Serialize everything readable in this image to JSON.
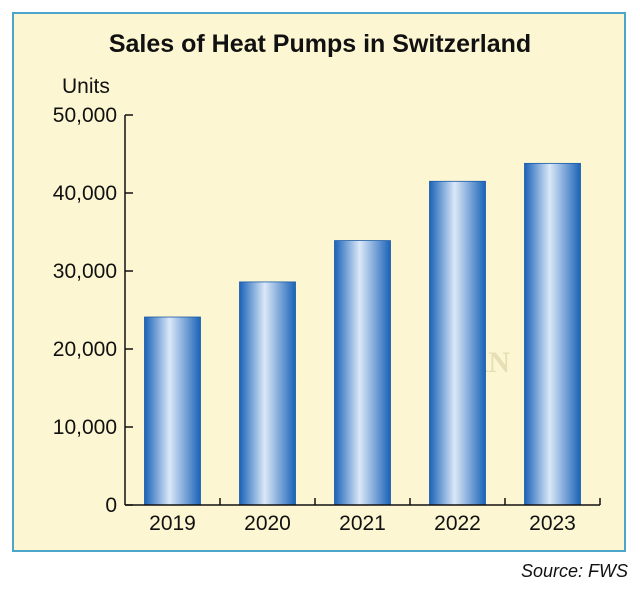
{
  "chart_data": {
    "type": "bar",
    "title": "Sales of Heat Pumps in Switzerland",
    "ylabel": "Units",
    "xlabel": "",
    "categories": [
      "2019",
      "2020",
      "2021",
      "2022",
      "2023"
    ],
    "values": [
      24100,
      28600,
      33900,
      41500,
      43800
    ],
    "ylim": [
      0,
      50000
    ],
    "yticks": [
      "0",
      "10,000",
      "20,000",
      "30,000",
      "40,000",
      "50,000"
    ],
    "ytick_values": [
      0,
      10000,
      20000,
      30000,
      40000,
      50000
    ],
    "grid": false,
    "legend": "none",
    "bar_color": "#1f6fc2",
    "bar_highlight": "#dbe8f8"
  },
  "source": "Source: FWS",
  "watermark": "JARN",
  "colors": {
    "background": "#fcf7d2",
    "border": "#4aa7c9"
  }
}
